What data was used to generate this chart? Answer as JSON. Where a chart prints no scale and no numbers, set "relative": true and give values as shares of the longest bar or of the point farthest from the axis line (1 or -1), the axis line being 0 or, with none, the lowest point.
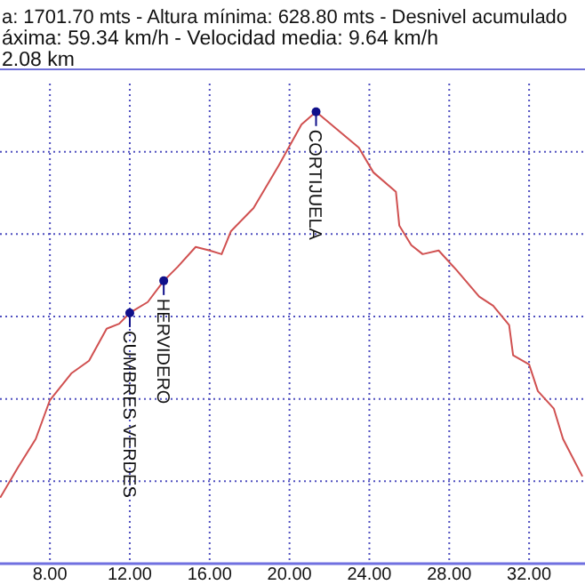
{
  "chart_data": {
    "type": "line",
    "relative": true,
    "title": "a: 1701.70 mts - Altura mínima: 628.80 mts - Desnivel acumulado",
    "subtitle": "áxima: 59.34 km/h - Velocidad media: 9.64 km/h",
    "annotations": [
      "2.08 km",
      {
        "text": "CUMBRES VERDES",
        "x": 12.0,
        "y": 0.555
      },
      {
        "text": "HERVIDERO",
        "x": 13.7,
        "y": 0.626
      },
      {
        "text": "CORTIJUELA",
        "x": 21.33,
        "y": 1.0
      }
    ],
    "xlim": [
      5.5,
      34.8
    ],
    "xticks": [
      {
        "value": 8,
        "label": "8.00"
      },
      {
        "value": 12,
        "label": "12.00"
      },
      {
        "value": 16,
        "label": "16.00"
      },
      {
        "value": 20,
        "label": "20.00"
      },
      {
        "value": 24,
        "label": "24.00"
      },
      {
        "value": 28,
        "label": "28.00"
      },
      {
        "value": 32,
        "label": "32.00"
      }
    ],
    "grid": true,
    "tick_labels": "x",
    "series": [
      {
        "color": "#d05050",
        "marker": "none",
        "line_style": "solid",
        "x": [
          5.51,
          6.4,
          7.29,
          8.0,
          9.07,
          9.96,
          10.84,
          11.47,
          12.0,
          12.9,
          13.7,
          14.4,
          15.3,
          16.0,
          16.6,
          17.07,
          18.2,
          19.47,
          20.6,
          21.33,
          23.47,
          24.2,
          25.33,
          25.5,
          26.1,
          26.67,
          27.47,
          28.36,
          29.5,
          30.2,
          31.0,
          31.2,
          32.0,
          32.44,
          33.24,
          33.7,
          34.67
        ],
        "values": [
          0.146,
          0.213,
          0.276,
          0.362,
          0.421,
          0.449,
          0.52,
          0.531,
          0.555,
          0.579,
          0.626,
          0.657,
          0.701,
          0.693,
          0.685,
          0.736,
          0.787,
          0.882,
          0.972,
          1.0,
          0.921,
          0.866,
          0.823,
          0.748,
          0.705,
          0.685,
          0.693,
          0.65,
          0.591,
          0.571,
          0.528,
          0.461,
          0.441,
          0.382,
          0.343,
          0.276,
          0.193
        ]
      },
      {
        "type": "scatter",
        "color": "#10108a",
        "marker": "circle",
        "x": [
          12.0,
          13.7,
          21.33
        ],
        "values": [
          0.555,
          0.626,
          1.0
        ]
      }
    ]
  }
}
